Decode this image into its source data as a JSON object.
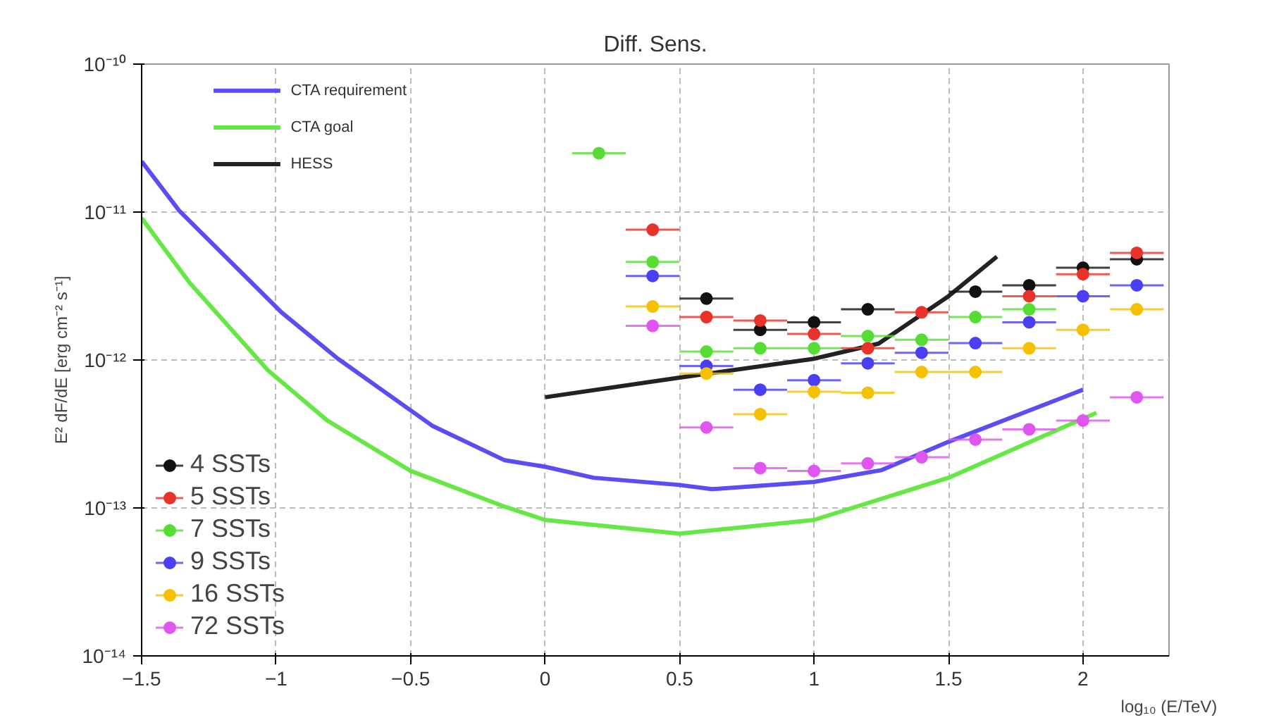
{
  "chart_data": {
    "type": "scatter",
    "title": "Diff. Sens.",
    "xlabel": "log₁₀ (E/TeV)",
    "ylabel": "E² dF/dE [erg cm⁻² s⁻¹]",
    "log": "y",
    "grid": true,
    "legend": "left",
    "marker": "circle",
    "xlim": [
      -1.5,
      2.32
    ],
    "ylim": [
      1e-14,
      1e-10
    ],
    "xticks": [
      -1.5,
      -1,
      -0.5,
      0,
      0.5,
      1,
      1.5,
      2
    ],
    "yticks": [
      {
        "value": 1e-14,
        "label": "10⁻¹⁴"
      },
      {
        "value": 1e-13,
        "label": "10⁻¹³"
      },
      {
        "value": 1e-12,
        "label": "10⁻¹²"
      },
      {
        "value": 1e-11,
        "label": "10⁻¹¹"
      },
      {
        "value": 1e-10,
        "label": "10⁻¹⁰"
      }
    ],
    "x": [
      0.2,
      0.4,
      0.6,
      0.8,
      1.0,
      1.2,
      1.4,
      1.6,
      1.8,
      2.0,
      2.2
    ],
    "series": [
      {
        "name": "CTA requirement",
        "type": "line",
        "marker": "none",
        "color": "#5a4df5",
        "x": [
          -1.5,
          -1.36,
          -0.98,
          -0.77,
          -0.42,
          -0.15,
          0,
          0.18,
          0.5,
          0.62,
          1.0,
          1.25,
          1.5,
          2.0
        ],
        "values": [
          2.2e-11,
          1.02e-11,
          2.1e-12,
          1.02e-12,
          3.6e-13,
          2.1e-13,
          1.9e-13,
          1.6e-13,
          1.43e-13,
          1.34e-13,
          1.5e-13,
          1.8e-13,
          2.8e-13,
          6.3e-13
        ]
      },
      {
        "name": "CTA goal",
        "type": "line",
        "marker": "none",
        "color": "#66e844",
        "x": [
          -1.5,
          -1.32,
          -1.03,
          -0.81,
          -0.5,
          -0.15,
          0,
          0.5,
          1.0,
          1.5,
          2.05
        ],
        "values": [
          9.1e-12,
          3.3e-12,
          8.5e-13,
          3.9e-13,
          1.78e-13,
          1.02e-13,
          8.3e-14,
          6.7e-14,
          8.3e-14,
          1.6e-13,
          4.4e-13
        ]
      },
      {
        "name": "HESS",
        "type": "line",
        "marker": "none",
        "color": "#222222",
        "x": [
          0,
          0.5,
          1.0,
          1.24,
          1.5,
          1.68
        ],
        "values": [
          5.6e-13,
          7.6e-13,
          1.02e-12,
          1.29e-12,
          2.7e-12,
          5e-12
        ]
      },
      {
        "name": "4 SSTs",
        "color": "#111111",
        "values": [
          null,
          null,
          2.6e-12,
          1.6e-12,
          1.8e-12,
          2.2e-12,
          null,
          2.9e-12,
          3.2e-12,
          4.2e-12,
          4.8e-12
        ],
        "xerrors": [
          null,
          null,
          0.1,
          0.1,
          0.1,
          0.1,
          null,
          0.1,
          0.1,
          0.1,
          0.1
        ]
      },
      {
        "name": "5 SSTs",
        "color": "#e8322a",
        "values": [
          null,
          7.6e-12,
          1.95e-12,
          1.85e-12,
          1.5e-12,
          1.2e-12,
          2.1e-12,
          null,
          2.7e-12,
          3.8e-12,
          5.3e-12
        ],
        "xerrors": [
          null,
          0.1,
          0.1,
          0.1,
          0.1,
          0.1,
          0.1,
          null,
          0.1,
          0.1,
          0.1
        ]
      },
      {
        "name": "7 SSTs",
        "color": "#55dd33",
        "values": [
          2.5e-11,
          4.6e-12,
          1.14e-12,
          1.2e-12,
          1.2e-12,
          1.45e-12,
          1.37e-12,
          1.95e-12,
          2.2e-12,
          null,
          null
        ],
        "xerrors": [
          0.1,
          0.1,
          0.1,
          0.1,
          0.1,
          0.1,
          0.1,
          0.1,
          0.1,
          null,
          null
        ]
      },
      {
        "name": "9 SSTs",
        "color": "#4a3ff5",
        "values": [
          null,
          3.7e-12,
          9.1e-13,
          6.3e-13,
          7.3e-13,
          9.5e-13,
          1.12e-12,
          1.3e-12,
          1.8e-12,
          2.7e-12,
          3.2e-12
        ],
        "xerrors": [
          null,
          0.1,
          0.1,
          0.1,
          0.1,
          0.1,
          0.1,
          0.1,
          0.1,
          0.1,
          0.1
        ]
      },
      {
        "name": "16 SSTs",
        "color": "#f5c000",
        "values": [
          null,
          2.3e-12,
          8.1e-13,
          4.3e-13,
          6.1e-13,
          6e-13,
          8.3e-13,
          8.3e-13,
          1.2e-12,
          1.6e-12,
          2.2e-12
        ],
        "xerrors": [
          null,
          0.1,
          0.1,
          0.1,
          0.1,
          0.1,
          0.1,
          0.1,
          0.1,
          0.1,
          0.1
        ]
      },
      {
        "name": "72 SSTs",
        "color": "#e055f0",
        "values": [
          null,
          1.7e-12,
          3.5e-13,
          1.86e-13,
          1.78e-13,
          2e-13,
          2.2e-13,
          2.9e-13,
          3.4e-13,
          3.9e-13,
          5.6e-13
        ],
        "xerrors": [
          null,
          0.1,
          0.1,
          0.1,
          0.1,
          0.1,
          0.1,
          0.1,
          0.1,
          0.1,
          0.1
        ]
      }
    ]
  }
}
